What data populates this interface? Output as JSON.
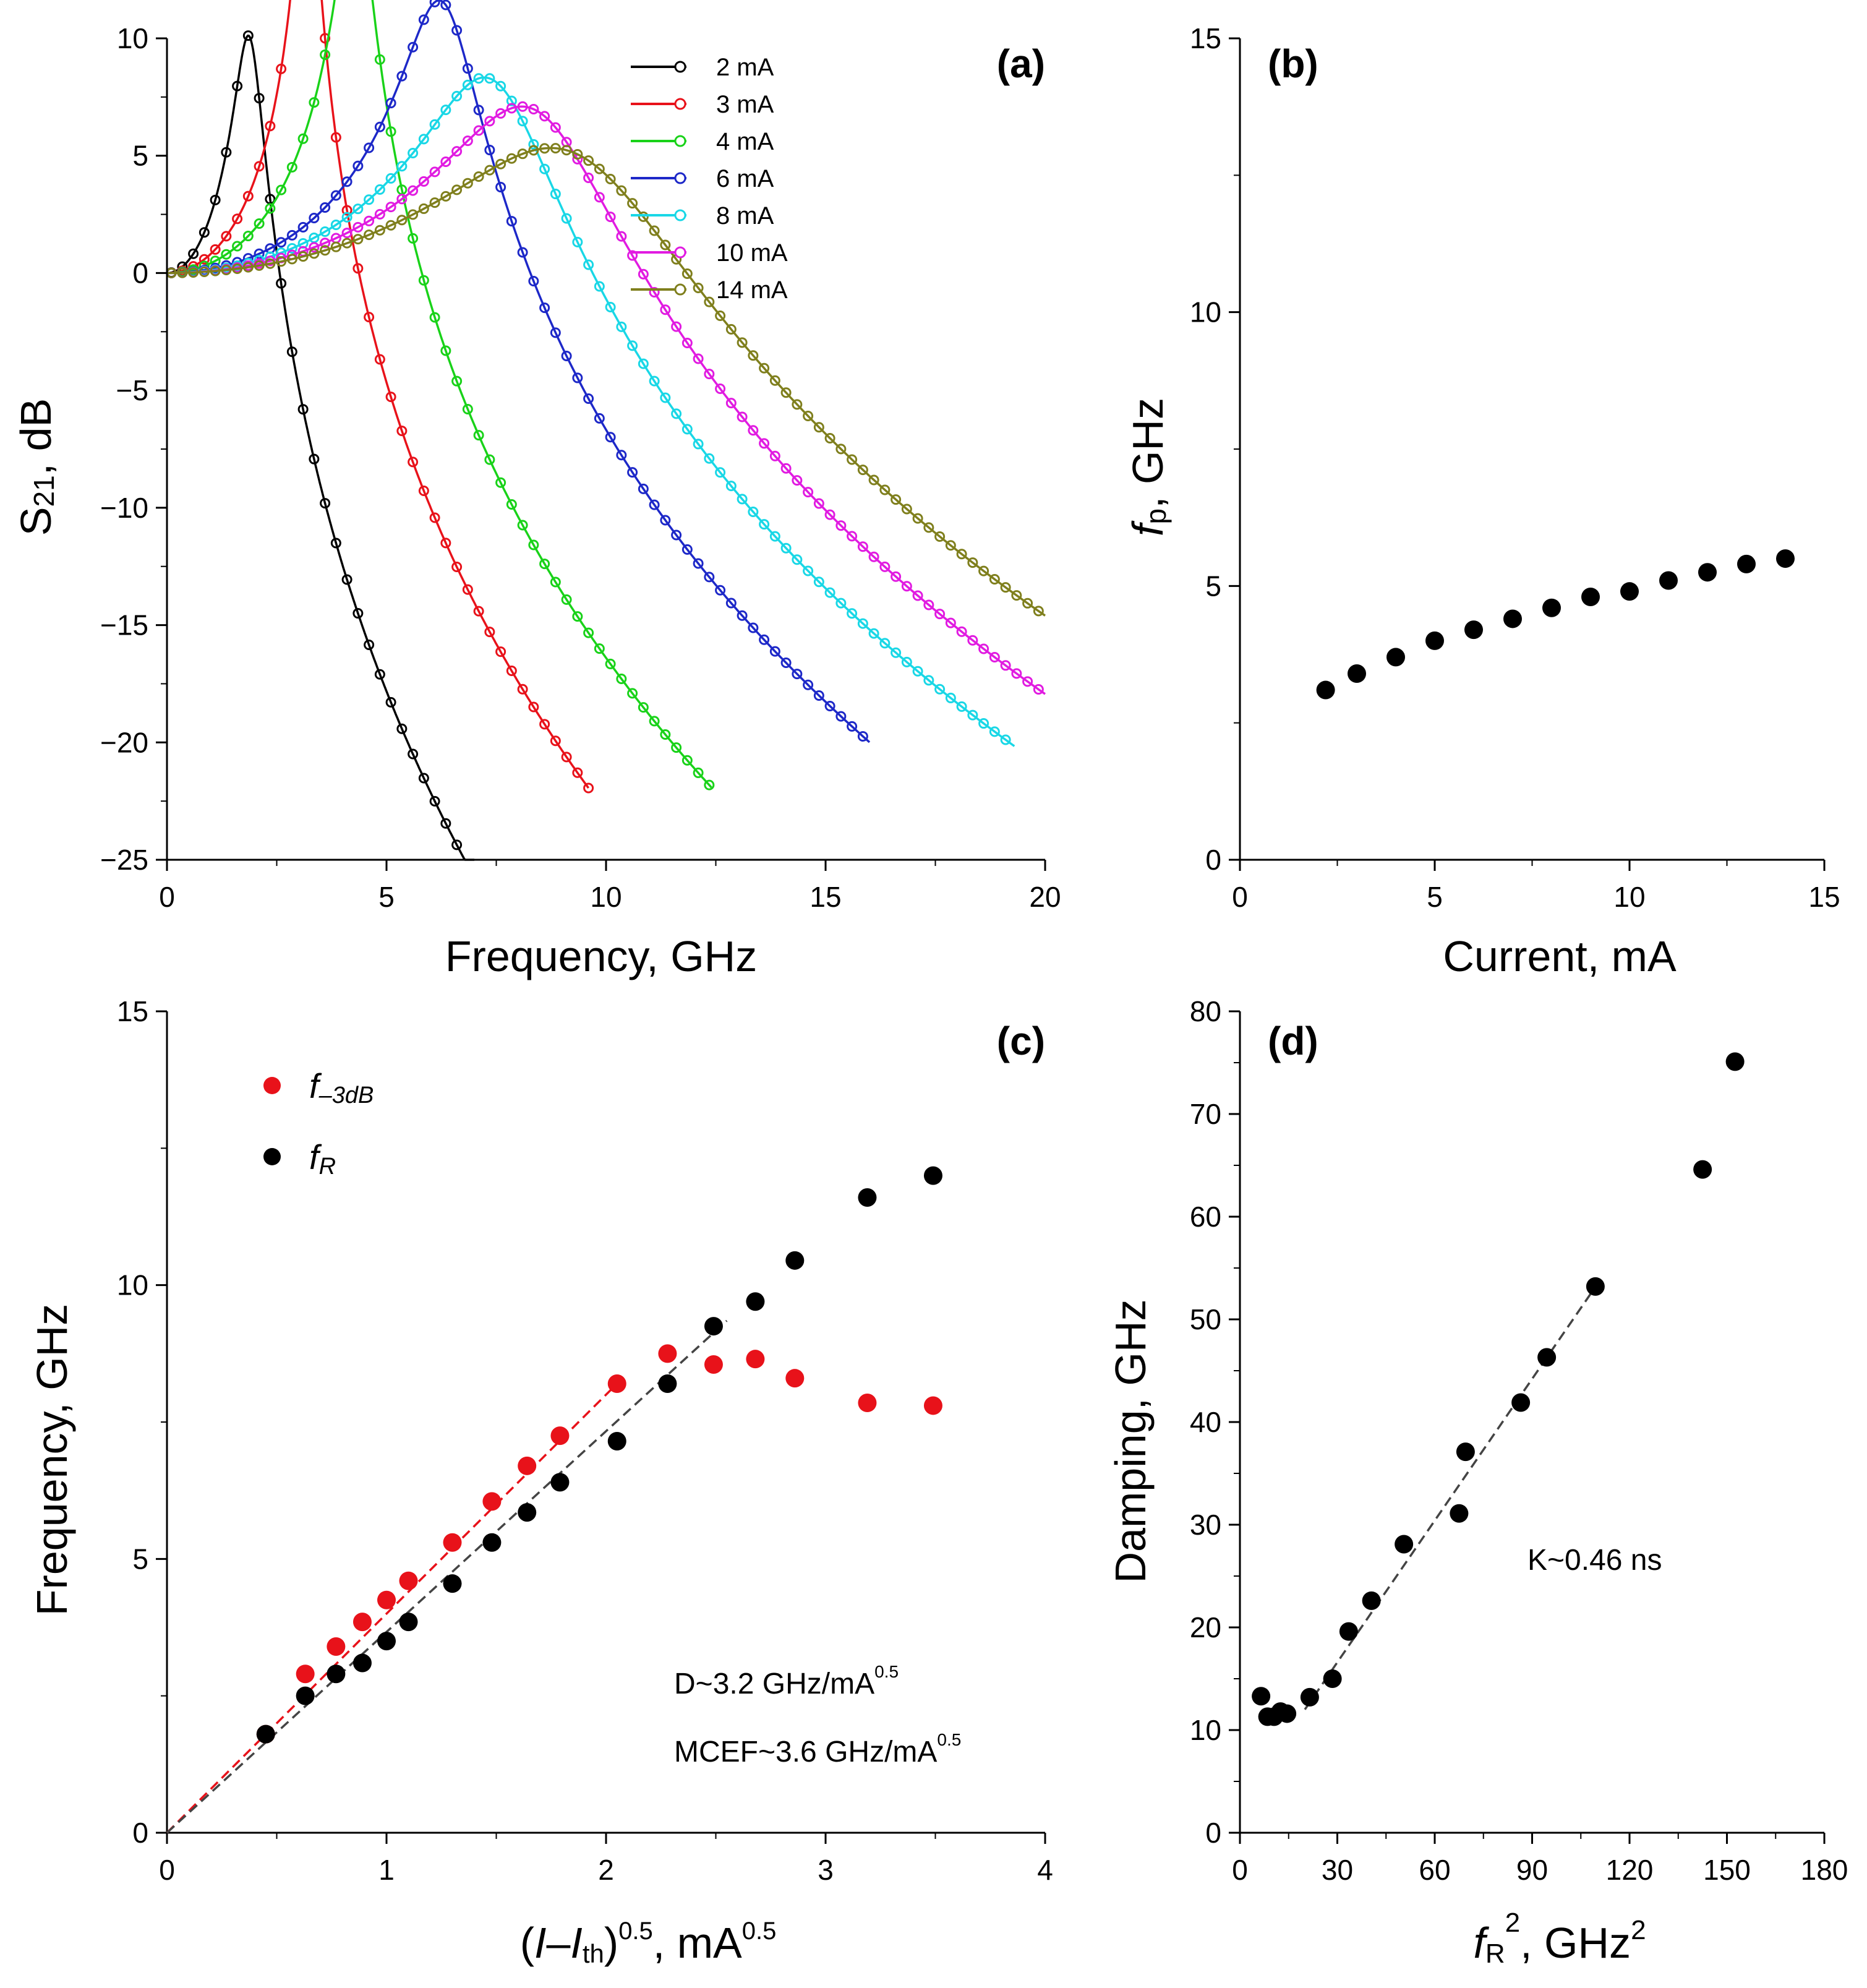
{
  "chart_data": [
    {
      "panel": "(a)",
      "type": "line",
      "title": "",
      "xlabel": "Frequency, GHz",
      "ylabel_parts": [
        "S",
        "21",
        ", dB"
      ],
      "xlim": [
        0,
        20
      ],
      "ylim": [
        -25,
        10
      ],
      "xticks": [
        "0",
        "5",
        "10",
        "15",
        "20"
      ],
      "yticks": [
        "10",
        "5",
        "0",
        "−5",
        "−10",
        "−15",
        "−20",
        "−25"
      ],
      "legend_position": "top",
      "series": [
        {
          "name": "2 mA",
          "color": "#000000",
          "fr": 1.9,
          "gamma": 3.6,
          "fp": 6.0,
          "xmax": 7.0
        },
        {
          "name": "3 mA",
          "color": "#e8121a",
          "fr": 3.2,
          "gamma": 2.0,
          "fp": 8.0,
          "xmax": 9.6
        },
        {
          "name": "4 mA",
          "color": "#19d219",
          "fr": 4.3,
          "gamma": 3.5,
          "fp": 9.0,
          "xmax": 12.4
        },
        {
          "name": "6 mA",
          "color": "#1d28c8",
          "fr": 6.3,
          "gamma": 9.0,
          "fp": 10.5,
          "xmax": 16.0
        },
        {
          "name": "8 mA",
          "color": "#19d7e6",
          "fr": 7.5,
          "gamma": 16.0,
          "fp": 13.0,
          "xmax": 19.3
        },
        {
          "name": "10 mA",
          "color": "#e11be1",
          "fr": 8.5,
          "gamma": 21.0,
          "fp": 14.5,
          "xmax": 20.0
        },
        {
          "name": "14 mA",
          "color": "#7f7f1d",
          "fr": 9.5,
          "gamma": 30.0,
          "fp": 18.0,
          "xmax": 20.0
        }
      ]
    },
    {
      "panel": "(b)",
      "type": "scatter",
      "xlabel": "Current, mA",
      "ylabel_parts": [
        "f",
        "p",
        ", GHz"
      ],
      "xlim": [
        0,
        15
      ],
      "ylim": [
        0,
        15
      ],
      "xticks": [
        "0",
        "5",
        "10",
        "15"
      ],
      "yticks": [
        "0",
        "5",
        "10",
        "15"
      ],
      "x": [
        2.2,
        3,
        4,
        5,
        6,
        7,
        8,
        9,
        10,
        11,
        12,
        13,
        14
      ],
      "y": [
        3.1,
        3.4,
        3.7,
        4.0,
        4.2,
        4.4,
        4.6,
        4.8,
        4.9,
        5.1,
        5.25,
        5.4,
        5.5
      ]
    },
    {
      "panel": "(c)",
      "type": "scatter",
      "xlabel_parts": [
        "(",
        "I",
        "–",
        "I",
        "th",
        ")",
        "0.5",
        ", mA",
        "0.5"
      ],
      "ylabel": "Frequency, GHz",
      "xlim": [
        0,
        4
      ],
      "ylim": [
        0,
        15
      ],
      "xticks": [
        "0",
        "1",
        "2",
        "3",
        "4"
      ],
      "yticks": [
        "0",
        "5",
        "10",
        "15"
      ],
      "series": [
        {
          "name": "f–3dB",
          "label_main": "f",
          "label_sub": "–3dB",
          "color": "#e8121a",
          "x": [
            0.45,
            0.63,
            0.77,
            0.89,
            1.0,
            1.1,
            1.3,
            1.48,
            1.64,
            1.79,
            2.05,
            2.28,
            2.49,
            2.68,
            2.86,
            3.19,
            3.49
          ],
          "y": [
            1.8,
            2.9,
            3.4,
            3.85,
            4.25,
            4.6,
            5.3,
            6.05,
            6.7,
            7.25,
            8.2,
            8.75,
            8.55,
            8.65,
            8.3,
            7.85,
            7.8
          ]
        },
        {
          "name": "fR",
          "label_main": "f",
          "label_sub": "R",
          "color": "#000000",
          "x": [
            0.45,
            0.63,
            0.77,
            0.89,
            1.0,
            1.1,
            1.3,
            1.48,
            1.64,
            1.79,
            2.05,
            2.28,
            2.49,
            2.68,
            2.86,
            3.19,
            3.49
          ],
          "y": [
            1.8,
            2.5,
            2.9,
            3.1,
            3.5,
            3.85,
            4.55,
            5.3,
            5.85,
            6.4,
            7.15,
            8.2,
            9.25,
            9.7,
            10.45,
            11.6,
            12.0
          ]
        }
      ],
      "fits": [
        {
          "color": "#e8121a",
          "x": [
            0,
            2.05
          ],
          "y": [
            0,
            8.2
          ]
        },
        {
          "color": "#444444",
          "x": [
            0,
            2.55
          ],
          "y": [
            0,
            9.35
          ]
        }
      ],
      "annotations": {
        "d_text": "D~3.2 GHz/mA",
        "d_sup": "0.5",
        "mcef_text": "MCEF~3.6 GHz/mA",
        "mcef_sup": "0.5"
      }
    },
    {
      "panel": "(d)",
      "type": "scatter",
      "xlabel_parts": [
        "f",
        "R",
        "2",
        ", GHz",
        "2"
      ],
      "ylabel": "Damping, GHz",
      "xlim": [
        0,
        180
      ],
      "ylim": [
        0,
        80
      ],
      "xticks": [
        "0",
        "30",
        "60",
        "90",
        "120",
        "150",
        "180"
      ],
      "yticks": [
        "0",
        "10",
        "20",
        "30",
        "40",
        "50",
        "60",
        "70",
        "80"
      ],
      "x": [
        6.5,
        8.5,
        10.5,
        12.5,
        14.5,
        21.5,
        28.5,
        33.5,
        40.5,
        50.5,
        67.5,
        69.5,
        86.5,
        94.5,
        109.5,
        142.5,
        152.5
      ],
      "y": [
        13.3,
        11.3,
        11.3,
        11.8,
        11.6,
        13.2,
        15.0,
        19.6,
        22.6,
        28.1,
        31.1,
        37.1,
        41.9,
        46.3,
        53.2,
        64.6,
        75.1
      ],
      "fit": {
        "x": [
          20,
          110
        ],
        "y": [
          12.0,
          53.4
        ]
      },
      "annotation": "K~0.46 ns"
    }
  ]
}
